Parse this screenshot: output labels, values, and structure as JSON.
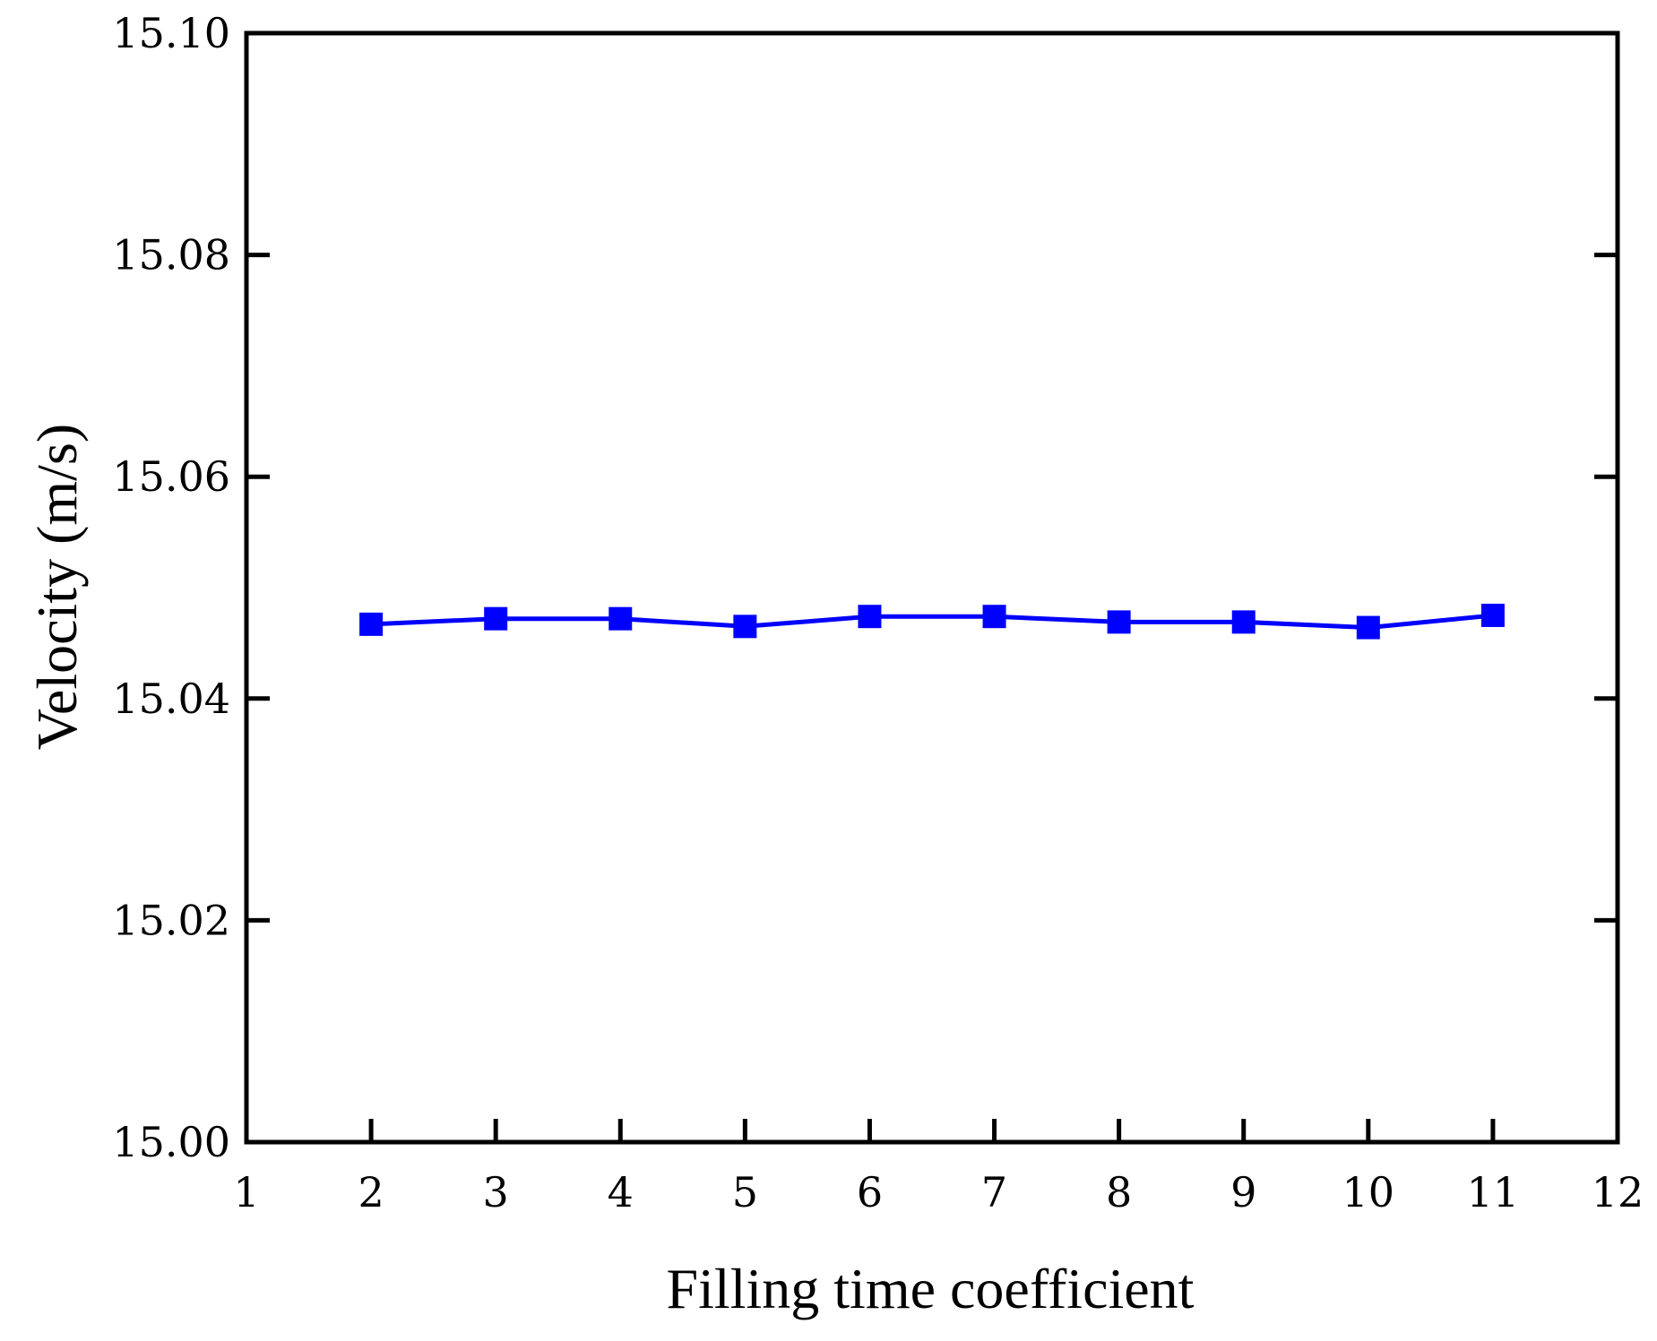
{
  "chart_data": {
    "type": "line",
    "title": "",
    "xlabel": "Filling time coefficient",
    "ylabel": "Velocity (m/s)",
    "xlim": [
      1,
      12
    ],
    "ylim": [
      15.0,
      15.1
    ],
    "x_ticks": [
      1,
      2,
      3,
      4,
      5,
      6,
      7,
      8,
      9,
      10,
      11,
      12
    ],
    "x_tick_labels": [
      "1",
      "2",
      "3",
      "4",
      "5",
      "6",
      "7",
      "8",
      "9",
      "10",
      "11",
      "12"
    ],
    "y_ticks": [
      15.0,
      15.02,
      15.04,
      15.06,
      15.08,
      15.1
    ],
    "y_tick_labels": [
      "15.00",
      "15.02",
      "15.04",
      "15.06",
      "15.08",
      "15.10"
    ],
    "grid": false,
    "legend": "none",
    "series": [
      {
        "color": "#0000ff",
        "marker": "square",
        "x": [
          2,
          3,
          4,
          5,
          6,
          7,
          8,
          9,
          10,
          11
        ],
        "values": [
          15.0467,
          15.0472,
          15.0472,
          15.0465,
          15.0474,
          15.0474,
          15.0469,
          15.0469,
          15.0464,
          15.0475
        ]
      }
    ]
  }
}
